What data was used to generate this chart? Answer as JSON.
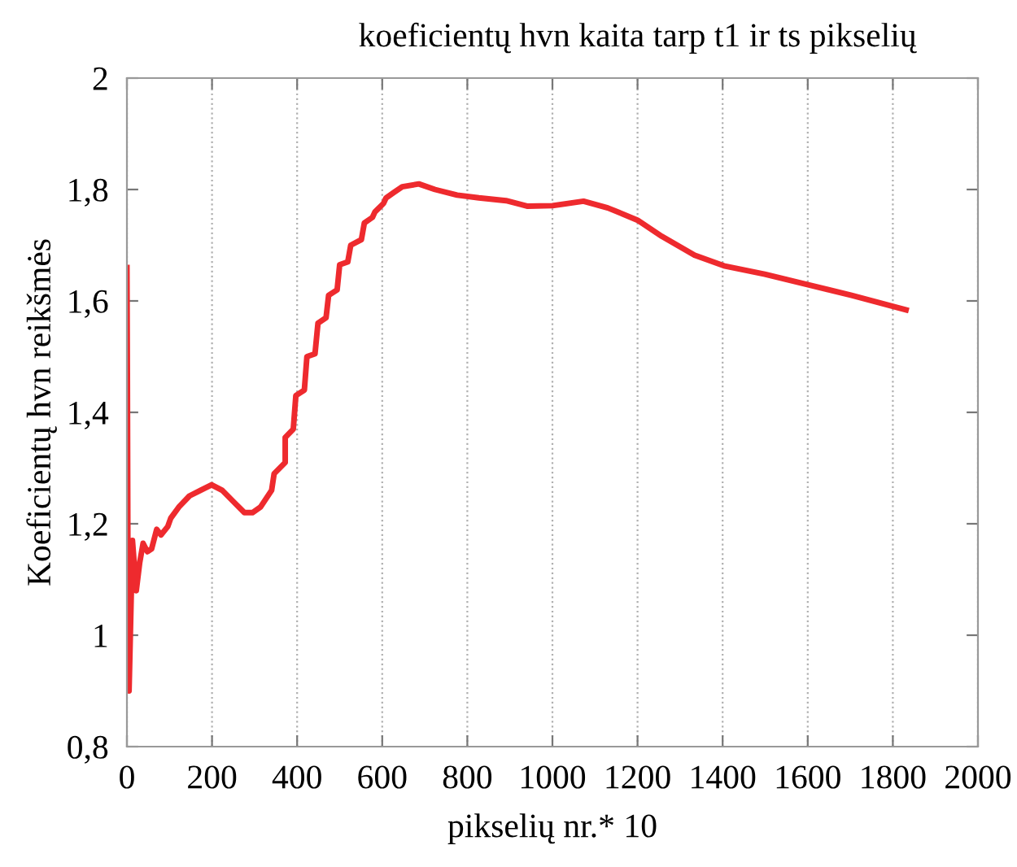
{
  "chart_data": {
    "type": "line",
    "title": "koeficientų hvn kaita tarp t1 ir ts pikselių",
    "xlabel": "pikselių nr.* 10",
    "ylabel": "Koeficientų hvn reikšmės",
    "series": [
      {
        "color": "#ee2a2e",
        "x": [
          0,
          1,
          3,
          5,
          8,
          13,
          18,
          22,
          30,
          38,
          48,
          58,
          70,
          80,
          96,
          103,
          122,
          147,
          173,
          199,
          224,
          250,
          276,
          295,
          314,
          340,
          346,
          372,
          372,
          391,
          397,
          417,
          423,
          442,
          449,
          468,
          474,
          494,
          500,
          519,
          526,
          551,
          558,
          577,
          583,
          603,
          609,
          628,
          647,
          686,
          724,
          776,
          827,
          891,
          942,
          1000,
          1073,
          1130,
          1200,
          1257,
          1334,
          1403,
          1499,
          1601,
          1703,
          1831
        ],
        "values": [
          1.66,
          1.47,
          0.95,
          0.9,
          1.0,
          1.17,
          1.12,
          1.08,
          1.13,
          1.165,
          1.15,
          1.155,
          1.19,
          1.18,
          1.195,
          1.21,
          1.23,
          1.25,
          1.26,
          1.27,
          1.26,
          1.24,
          1.22,
          1.22,
          1.23,
          1.26,
          1.29,
          1.31,
          1.355,
          1.37,
          1.43,
          1.44,
          1.5,
          1.505,
          1.56,
          1.57,
          1.61,
          1.62,
          1.665,
          1.67,
          1.7,
          1.71,
          1.74,
          1.75,
          1.76,
          1.775,
          1.785,
          1.795,
          1.805,
          1.81,
          1.8,
          1.79,
          1.785,
          1.78,
          1.77,
          1.771,
          1.779,
          1.767,
          1.745,
          1.716,
          1.682,
          1.663,
          1.648,
          1.629,
          1.61,
          1.584
        ]
      }
    ],
    "xlim": [
      0,
      2000
    ],
    "ylim": [
      0.8,
      2
    ],
    "xticks": [
      0,
      200,
      400,
      600,
      800,
      1000,
      1200,
      1400,
      1600,
      1800,
      2000
    ],
    "yticks": [
      {
        "value": 0.8,
        "label": "0,8"
      },
      1,
      {
        "value": 1.2,
        "label": "1,2"
      },
      {
        "value": 1.4,
        "label": "1,4"
      },
      {
        "value": 1.6,
        "label": "1,6"
      },
      {
        "value": 1.8,
        "label": "1,8"
      },
      2
    ],
    "grid": "x",
    "line_style": "solid",
    "marker": "none",
    "legend": false
  }
}
